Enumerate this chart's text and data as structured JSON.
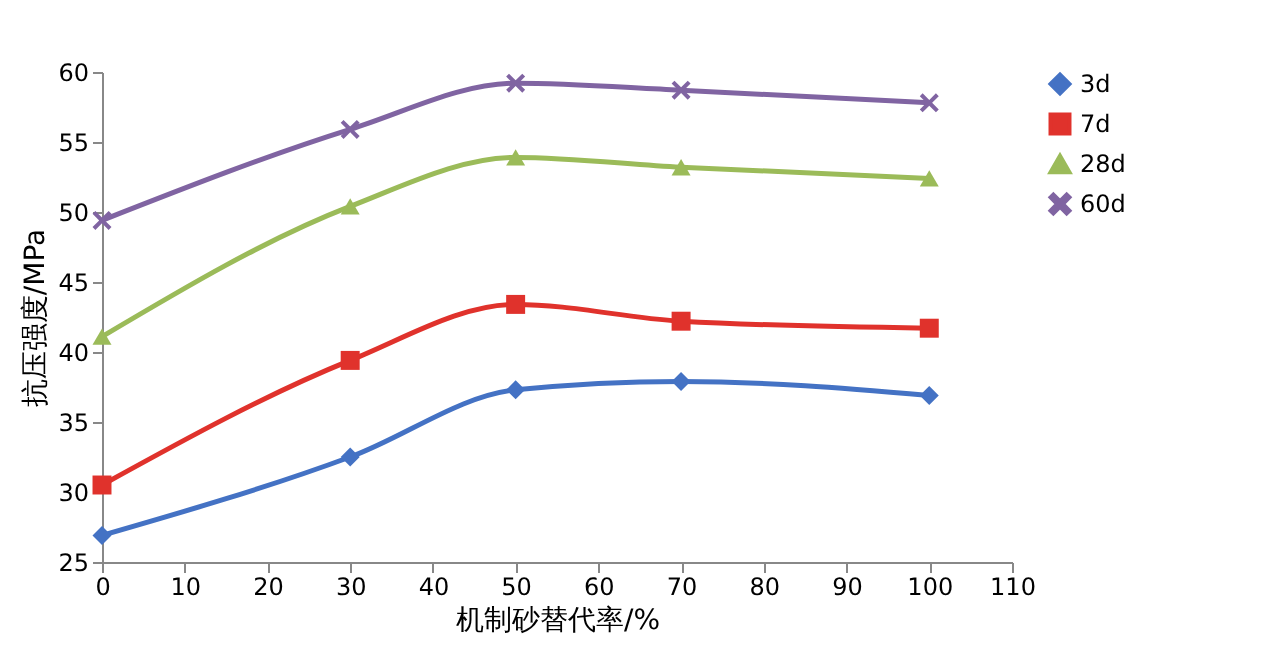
{
  "chart_data": {
    "type": "line",
    "xlabel": "机制砂替代率/%",
    "ylabel": "抗压强度/MPa",
    "x": [
      0,
      30,
      50,
      70,
      100
    ],
    "series": [
      {
        "name": "3d",
        "color": "#4472c4",
        "marker": "diamond",
        "values": [
          26.9,
          32.5,
          37.3,
          37.9,
          36.9
        ]
      },
      {
        "name": "7d",
        "color": "#e0322c",
        "marker": "square",
        "values": [
          30.5,
          39.4,
          43.4,
          42.2,
          41.7
        ]
      },
      {
        "name": "28d",
        "color": "#9bbb59",
        "marker": "triangle",
        "values": [
          41.1,
          50.4,
          53.9,
          53.2,
          52.4
        ]
      },
      {
        "name": "60d",
        "color": "#8064a2",
        "marker": "cross",
        "values": [
          49.4,
          55.9,
          59.2,
          58.7,
          57.8
        ]
      }
    ],
    "xlim": [
      0,
      110
    ],
    "xticks": [
      0,
      10,
      20,
      30,
      40,
      50,
      60,
      70,
      80,
      90,
      100,
      110
    ],
    "ylim": [
      25,
      60
    ],
    "yticks": [
      25,
      30,
      35,
      40,
      45,
      50,
      55,
      60
    ],
    "grid": false,
    "legend": "right",
    "line_style": "solid"
  }
}
